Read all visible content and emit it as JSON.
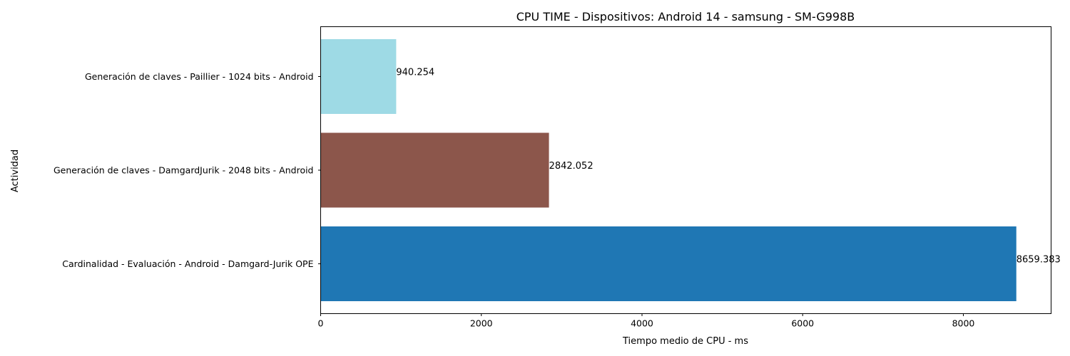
{
  "chart_data": {
    "type": "bar",
    "orientation": "horizontal",
    "title": "CPU TIME - Dispositivos: Android 14 - samsung - SM-G998B",
    "xlabel": "Tiempo medio de CPU - ms",
    "ylabel": "Actividad",
    "xlim": [
      0,
      9092.35
    ],
    "xticks": [
      0,
      2000,
      4000,
      6000,
      8000
    ],
    "grid": false,
    "categories": [
      "Cardinalidad - Evaluación - Android - Damgard-Jurik OPE",
      "Generación de claves - DamgardJurik - 2048 bits - Android",
      "Generación de claves - Paillier - 1024 bits - Android"
    ],
    "values": [
      8659.383,
      2842.052,
      940.254
    ],
    "value_labels": [
      "8659.383",
      "2842.052",
      "940.254"
    ],
    "colors": [
      "#1f77b4",
      "#8c564b",
      "#9edae5"
    ]
  }
}
